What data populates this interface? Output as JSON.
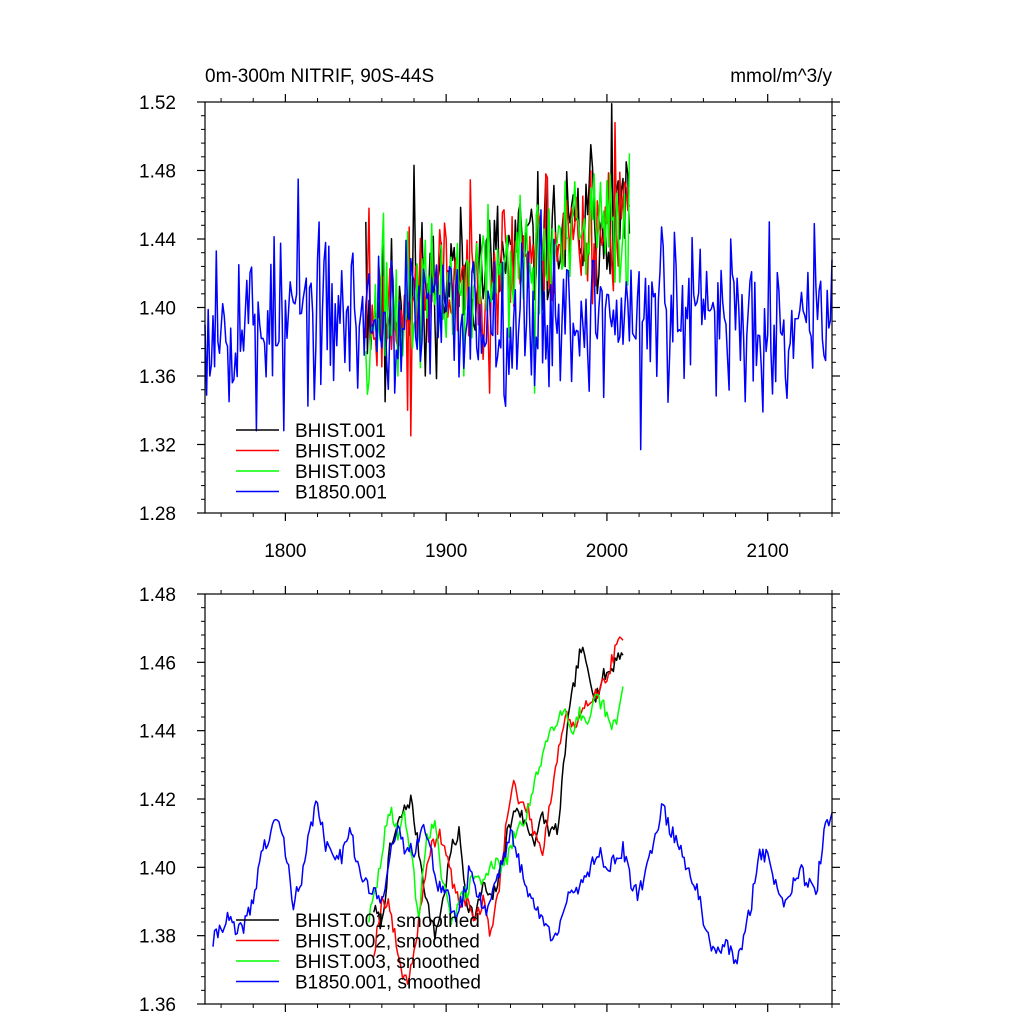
{
  "chart_data": [
    {
      "type": "line",
      "title": "0m-300m NITRIF, 90S-44S",
      "units": "mmol/m^3/y",
      "xlabel": "",
      "ylabel": "",
      "xlim": [
        1750,
        2140
      ],
      "ylim": [
        1.28,
        1.52
      ],
      "xticks": [
        1800,
        1900,
        2000,
        2100
      ],
      "xtick_labels": [
        "1800",
        "1900",
        "2000",
        "2100"
      ],
      "yticks": [
        1.28,
        1.32,
        1.36,
        1.4,
        1.44,
        1.48,
        1.52
      ],
      "ytick_labels": [
        "1.28",
        "1.32",
        "1.36",
        "1.40",
        "1.44",
        "1.48",
        "1.52"
      ],
      "legend_position": "bottom-left",
      "series": [
        {
          "name": "BHIST.001",
          "color": "#000000",
          "kind": "annual",
          "x0": 1850,
          "x1": 2014,
          "base_start": 1.398,
          "base_end": 1.455,
          "noise": 0.02,
          "seed": 11,
          "anchors": [
            [
              1850,
              1.45
            ],
            [
              1862,
              1.345
            ],
            [
              1880,
              1.483
            ],
            [
              1887,
              1.36
            ],
            [
              1905,
              1.435
            ],
            [
              1990,
              1.495
            ],
            [
              2003,
              1.519
            ],
            [
              2008,
              1.44
            ],
            [
              2012,
              1.485
            ]
          ]
        },
        {
          "name": "BHIST.002",
          "color": "#ff0000",
          "kind": "annual",
          "x0": 1850,
          "x1": 2014,
          "base_start": 1.395,
          "base_end": 1.455,
          "noise": 0.02,
          "seed": 23,
          "anchors": [
            [
              1852,
              1.458
            ],
            [
              1876,
              1.34
            ],
            [
              1878,
              1.325
            ],
            [
              1900,
              1.44
            ],
            [
              1927,
              1.35
            ],
            [
              1962,
              1.478
            ],
            [
              2005,
              1.508
            ],
            [
              2012,
              1.47
            ]
          ]
        },
        {
          "name": "BHIST.003",
          "color": "#00ff00",
          "kind": "annual",
          "x0": 1850,
          "x1": 2014,
          "base_start": 1.392,
          "base_end": 1.45,
          "noise": 0.019,
          "seed": 37,
          "anchors": [
            [
              1852,
              1.357
            ],
            [
              1861,
              1.455
            ],
            [
              1870,
              1.36
            ],
            [
              1911,
              1.36
            ],
            [
              1955,
              1.35
            ],
            [
              1992,
              1.478
            ],
            [
              2014,
              1.49
            ]
          ]
        },
        {
          "name": "B1850.001",
          "color": "#0000ff",
          "kind": "annual",
          "x0": 1750,
          "x1": 2140,
          "base_start": 1.395,
          "base_end": 1.395,
          "noise": 0.022,
          "seed": 53,
          "anchors": [
            [
              1750,
              1.39
            ],
            [
              1753,
              1.36
            ],
            [
              1757,
              1.433
            ],
            [
              1765,
              1.345
            ],
            [
              1782,
              1.328
            ],
            [
              1799,
              1.328
            ],
            [
              1808,
              1.475
            ],
            [
              1868,
              1.35
            ],
            [
              1959,
              1.457
            ],
            [
              2021,
              1.317
            ],
            [
              2034,
              1.447
            ],
            [
              2077,
              1.44
            ],
            [
              2086,
              1.345
            ],
            [
              2097,
              1.339
            ],
            [
              2101,
              1.45
            ],
            [
              2112,
              1.347
            ],
            [
              2129,
              1.449
            ],
            [
              2137,
              1.41
            ],
            [
              2140,
              1.428
            ]
          ]
        }
      ]
    },
    {
      "type": "line",
      "title": "",
      "xlabel": "",
      "ylabel": "",
      "xlim": [
        1750,
        2140
      ],
      "ylim": [
        1.36,
        1.48
      ],
      "xticks": [
        1800,
        1900,
        2000,
        2100
      ],
      "yticks": [
        1.36,
        1.38,
        1.4,
        1.42,
        1.44,
        1.46,
        1.48
      ],
      "ytick_labels": [
        "1.36",
        "1.38",
        "1.40",
        "1.42",
        "1.44",
        "1.46",
        "1.48"
      ],
      "legend_position": "bottom-left",
      "series": [
        {
          "name": "BHIST.001, smoothed",
          "color": "#000000",
          "kind": "smooth",
          "x0": 1855,
          "x1": 2010,
          "noise": 0.0022,
          "seed": 7,
          "points": [
            [
              1855,
              1.388
            ],
            [
              1860,
              1.383
            ],
            [
              1865,
              1.405
            ],
            [
              1872,
              1.415
            ],
            [
              1878,
              1.42
            ],
            [
              1882,
              1.408
            ],
            [
              1888,
              1.39
            ],
            [
              1893,
              1.38
            ],
            [
              1898,
              1.39
            ],
            [
              1903,
              1.405
            ],
            [
              1908,
              1.41
            ],
            [
              1913,
              1.39
            ],
            [
              1918,
              1.385
            ],
            [
              1923,
              1.395
            ],
            [
              1928,
              1.39
            ],
            [
              1933,
              1.397
            ],
            [
              1938,
              1.41
            ],
            [
              1944,
              1.418
            ],
            [
              1950,
              1.412
            ],
            [
              1955,
              1.408
            ],
            [
              1960,
              1.415
            ],
            [
              1965,
              1.41
            ],
            [
              1970,
              1.412
            ],
            [
              1975,
              1.44
            ],
            [
              1980,
              1.455
            ],
            [
              1984,
              1.464
            ],
            [
              1988,
              1.458
            ],
            [
              1993,
              1.45
            ],
            [
              1998,
              1.456
            ],
            [
              2003,
              1.458
            ],
            [
              2007,
              1.463
            ],
            [
              2010,
              1.461
            ]
          ]
        },
        {
          "name": "BHIST.002, smoothed",
          "color": "#ff0000",
          "kind": "smooth",
          "x0": 1855,
          "x1": 2010,
          "noise": 0.0022,
          "seed": 19,
          "points": [
            [
              1855,
              1.375
            ],
            [
              1860,
              1.39
            ],
            [
              1864,
              1.39
            ],
            [
              1868,
              1.38
            ],
            [
              1872,
              1.37
            ],
            [
              1876,
              1.367
            ],
            [
              1880,
              1.375
            ],
            [
              1885,
              1.39
            ],
            [
              1890,
              1.405
            ],
            [
              1895,
              1.41
            ],
            [
              1900,
              1.405
            ],
            [
              1904,
              1.395
            ],
            [
              1908,
              1.39
            ],
            [
              1913,
              1.39
            ],
            [
              1918,
              1.385
            ],
            [
              1923,
              1.39
            ],
            [
              1928,
              1.38
            ],
            [
              1933,
              1.395
            ],
            [
              1938,
              1.415
            ],
            [
              1942,
              1.425
            ],
            [
              1946,
              1.418
            ],
            [
              1950,
              1.418
            ],
            [
              1955,
              1.41
            ],
            [
              1960,
              1.405
            ],
            [
              1965,
              1.42
            ],
            [
              1970,
              1.435
            ],
            [
              1975,
              1.445
            ],
            [
              1980,
              1.44
            ],
            [
              1985,
              1.445
            ],
            [
              1990,
              1.45
            ],
            [
              1995,
              1.452
            ],
            [
              2000,
              1.455
            ],
            [
              2004,
              1.462
            ],
            [
              2007,
              1.465
            ],
            [
              2010,
              1.467
            ]
          ]
        },
        {
          "name": "BHIST.003, smoothed",
          "color": "#00ff00",
          "kind": "smooth",
          "x0": 1852,
          "x1": 2010,
          "noise": 0.0022,
          "seed": 29,
          "points": [
            [
              1852,
              1.385
            ],
            [
              1857,
              1.395
            ],
            [
              1862,
              1.41
            ],
            [
              1866,
              1.417
            ],
            [
              1870,
              1.41
            ],
            [
              1874,
              1.415
            ],
            [
              1878,
              1.405
            ],
            [
              1883,
              1.385
            ],
            [
              1888,
              1.41
            ],
            [
              1893,
              1.412
            ],
            [
              1898,
              1.395
            ],
            [
              1903,
              1.385
            ],
            [
              1908,
              1.39
            ],
            [
              1913,
              1.393
            ],
            [
              1918,
              1.398
            ],
            [
              1923,
              1.395
            ],
            [
              1928,
              1.402
            ],
            [
              1933,
              1.4
            ],
            [
              1938,
              1.402
            ],
            [
              1943,
              1.41
            ],
            [
              1948,
              1.413
            ],
            [
              1953,
              1.42
            ],
            [
              1958,
              1.43
            ],
            [
              1963,
              1.438
            ],
            [
              1968,
              1.443
            ],
            [
              1973,
              1.447
            ],
            [
              1978,
              1.44
            ],
            [
              1983,
              1.445
            ],
            [
              1988,
              1.44
            ],
            [
              1993,
              1.45
            ],
            [
              1998,
              1.447
            ],
            [
              2003,
              1.44
            ],
            [
              2007,
              1.445
            ],
            [
              2010,
              1.452
            ]
          ]
        },
        {
          "name": "B1850.001, smoothed",
          "color": "#0000ff",
          "kind": "smooth",
          "x0": 1755,
          "x1": 2140,
          "noise": 0.0025,
          "seed": 41,
          "points": [
            [
              1755,
              1.378
            ],
            [
              1760,
              1.383
            ],
            [
              1765,
              1.385
            ],
            [
              1770,
              1.38
            ],
            [
              1775,
              1.384
            ],
            [
              1780,
              1.39
            ],
            [
              1785,
              1.405
            ],
            [
              1790,
              1.408
            ],
            [
              1795,
              1.415
            ],
            [
              1800,
              1.405
            ],
            [
              1805,
              1.39
            ],
            [
              1810,
              1.395
            ],
            [
              1815,
              1.41
            ],
            [
              1820,
              1.42
            ],
            [
              1825,
              1.405
            ],
            [
              1830,
              1.405
            ],
            [
              1835,
              1.403
            ],
            [
              1840,
              1.413
            ],
            [
              1845,
              1.4
            ],
            [
              1850,
              1.395
            ],
            [
              1855,
              1.392
            ],
            [
              1860,
              1.39
            ],
            [
              1865,
              1.405
            ],
            [
              1870,
              1.41
            ],
            [
              1875,
              1.405
            ],
            [
              1880,
              1.405
            ],
            [
              1885,
              1.413
            ],
            [
              1890,
              1.405
            ],
            [
              1895,
              1.395
            ],
            [
              1900,
              1.393
            ],
            [
              1905,
              1.385
            ],
            [
              1910,
              1.39
            ],
            [
              1915,
              1.4
            ],
            [
              1920,
              1.392
            ],
            [
              1925,
              1.387
            ],
            [
              1930,
              1.395
            ],
            [
              1935,
              1.402
            ],
            [
              1940,
              1.41
            ],
            [
              1945,
              1.402
            ],
            [
              1950,
              1.395
            ],
            [
              1955,
              1.388
            ],
            [
              1960,
              1.385
            ],
            [
              1965,
              1.38
            ],
            [
              1970,
              1.383
            ],
            [
              1975,
              1.39
            ],
            [
              1980,
              1.392
            ],
            [
              1985,
              1.397
            ],
            [
              1990,
              1.4
            ],
            [
              1995,
              1.405
            ],
            [
              2000,
              1.4
            ],
            [
              2005,
              1.402
            ],
            [
              2010,
              1.405
            ],
            [
              2015,
              1.395
            ],
            [
              2020,
              1.392
            ],
            [
              2025,
              1.4
            ],
            [
              2030,
              1.41
            ],
            [
              2035,
              1.418
            ],
            [
              2040,
              1.41
            ],
            [
              2045,
              1.407
            ],
            [
              2050,
              1.4
            ],
            [
              2055,
              1.395
            ],
            [
              2060,
              1.385
            ],
            [
              2065,
              1.375
            ],
            [
              2070,
              1.375
            ],
            [
              2075,
              1.378
            ],
            [
              2080,
              1.372
            ],
            [
              2085,
              1.378
            ],
            [
              2090,
              1.39
            ],
            [
              2095,
              1.405
            ],
            [
              2100,
              1.403
            ],
            [
              2105,
              1.395
            ],
            [
              2110,
              1.39
            ],
            [
              2115,
              1.395
            ],
            [
              2120,
              1.4
            ],
            [
              2125,
              1.395
            ],
            [
              2130,
              1.392
            ],
            [
              2135,
              1.41
            ],
            [
              2140,
              1.415
            ]
          ]
        }
      ]
    }
  ]
}
